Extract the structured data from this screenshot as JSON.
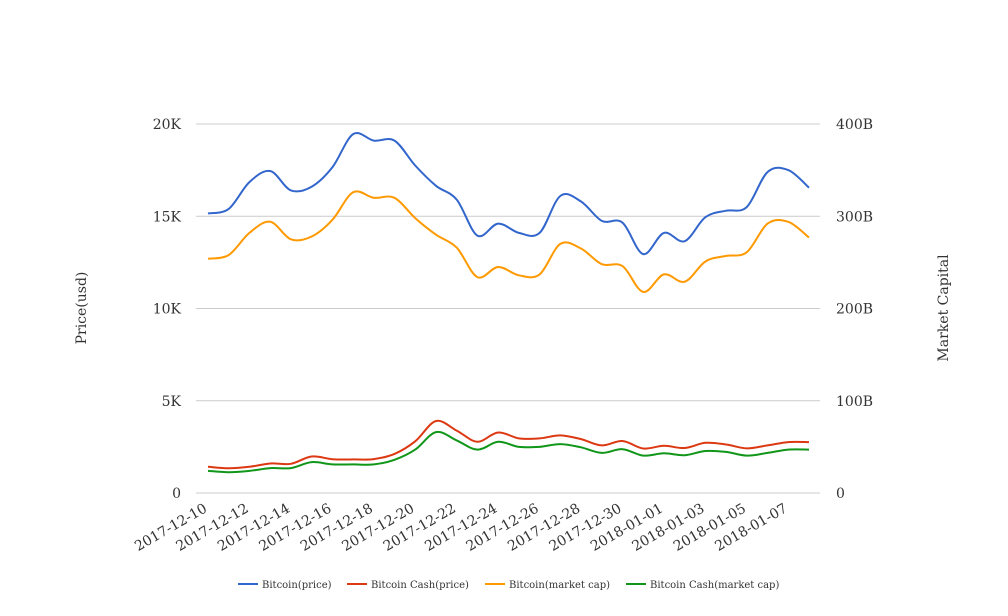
{
  "chart_data": {
    "type": "line",
    "x": [
      "2017-12-10",
      "2017-12-11",
      "2017-12-12",
      "2017-12-13",
      "2017-12-14",
      "2017-12-15",
      "2017-12-16",
      "2017-12-17",
      "2017-12-18",
      "2017-12-19",
      "2017-12-20",
      "2017-12-21",
      "2017-12-22",
      "2017-12-23",
      "2017-12-24",
      "2017-12-25",
      "2017-12-26",
      "2017-12-27",
      "2017-12-28",
      "2017-12-29",
      "2017-12-30",
      "2017-12-31",
      "2018-01-01",
      "2018-01-02",
      "2018-01-03",
      "2018-01-04",
      "2018-01-05",
      "2018-01-06",
      "2018-01-07",
      "2018-01-08"
    ],
    "x_tick_labels": [
      "2017-12-10",
      "2017-12-12",
      "2017-12-14",
      "2017-12-16",
      "2017-12-18",
      "2017-12-20",
      "2017-12-22",
      "2017-12-24",
      "2017-12-26",
      "2017-12-28",
      "2017-12-30",
      "2018-01-01",
      "2018-01-03",
      "2018-01-05",
      "2018-01-07"
    ],
    "ylabel": "Price(usd)",
    "ylabel_right": "Market Capital",
    "ylim": [
      0,
      20000
    ],
    "ylim_right": [
      0,
      400000000000
    ],
    "y_ticks": [
      "0",
      "5K",
      "10K",
      "15K",
      "20K"
    ],
    "y_ticks_right": [
      "0",
      "100B",
      "200B",
      "300B",
      "400B"
    ],
    "grid": true,
    "legend_position": "bottom",
    "series": [
      {
        "name": "Bitcoin(price)",
        "axis": "left",
        "color": "#3366cc",
        "values": [
          15150,
          15400,
          16850,
          17450,
          16400,
          16600,
          17650,
          19450,
          19100,
          19100,
          17750,
          16650,
          15900,
          13950,
          14600,
          14100,
          14100,
          16100,
          15800,
          14750,
          14650,
          12950,
          14100,
          13650,
          14950,
          15300,
          15500,
          17400,
          17500,
          16550
        ]
      },
      {
        "name": "Bitcoin Cash(price)",
        "axis": "left",
        "color": "#dc3912",
        "values": [
          1420,
          1340,
          1420,
          1600,
          1580,
          1980,
          1830,
          1820,
          1840,
          2120,
          2800,
          3900,
          3380,
          2780,
          3280,
          2960,
          2960,
          3120,
          2920,
          2580,
          2820,
          2410,
          2560,
          2440,
          2720,
          2630,
          2420,
          2580,
          2760,
          2760
        ]
      },
      {
        "name": "Bitcoin(market cap)",
        "axis": "right",
        "color": "#ff9900",
        "values": [
          254000000000,
          258000000000,
          282000000000,
          294000000000,
          275000000000,
          278000000000,
          296000000000,
          326000000000,
          320000000000,
          320000000000,
          298000000000,
          280000000000,
          266000000000,
          234000000000,
          245000000000,
          236000000000,
          237000000000,
          270000000000,
          265000000000,
          248000000000,
          246000000000,
          218000000000,
          237000000000,
          229000000000,
          251000000000,
          257000000000,
          261000000000,
          292000000000,
          294000000000,
          277000000000
        ]
      },
      {
        "name": "Bitcoin Cash(market cap)",
        "axis": "right",
        "color": "#109618",
        "values": [
          24000000000,
          22500000000,
          24000000000,
          27000000000,
          27000000000,
          33500000000,
          31000000000,
          31000000000,
          31000000000,
          36000000000,
          47000000000,
          66000000000,
          57000000000,
          47000000000,
          55500000000,
          50000000000,
          50000000000,
          53000000000,
          49500000000,
          43500000000,
          47500000000,
          40500000000,
          43000000000,
          41000000000,
          45500000000,
          44500000000,
          40500000000,
          43500000000,
          47000000000,
          47000000000
        ]
      }
    ]
  }
}
